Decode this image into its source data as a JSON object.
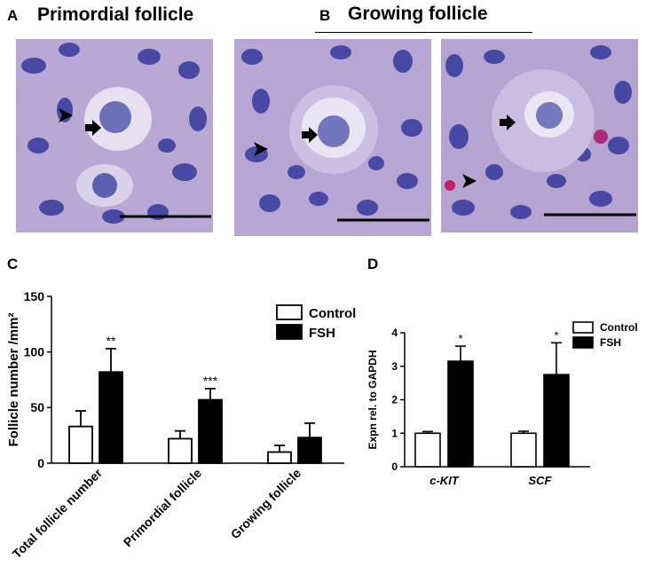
{
  "panels": {
    "a": {
      "letter": "A",
      "title": "Primordial follicle"
    },
    "b": {
      "letter": "B",
      "title": "Growing follicle"
    },
    "c": {
      "letter": "C"
    },
    "d": {
      "letter": "D"
    }
  },
  "colors": {
    "control": "#ffffff",
    "fsh": "#000000",
    "stain_bg": "#b7a5d2",
    "nucleus": "#3a3fa0",
    "oocyte": "#e4def0"
  },
  "chart_data": [
    {
      "id": "C",
      "type": "bar",
      "categories": [
        "Total follicle number",
        "Primordial follicle",
        "Growing follicle"
      ],
      "series": [
        {
          "name": "Control",
          "values": [
            33,
            22,
            10
          ],
          "errors": [
            14,
            7,
            6
          ]
        },
        {
          "name": "FSH",
          "values": [
            82,
            57,
            23
          ],
          "errors": [
            21,
            10,
            13
          ]
        }
      ],
      "significance": [
        "**",
        "***",
        ""
      ],
      "ylabel": "Follicle number /mm²",
      "ylim": [
        0,
        150
      ],
      "yticks": [
        0,
        50,
        100,
        150
      ],
      "legend": "top-right"
    },
    {
      "id": "D",
      "type": "bar",
      "categories": [
        "c-KIT",
        "SCF"
      ],
      "series": [
        {
          "name": "Control",
          "values": [
            1.0,
            1.0
          ],
          "errors": [
            0.05,
            0.06
          ]
        },
        {
          "name": "FSH",
          "values": [
            3.15,
            2.75
          ],
          "errors": [
            0.45,
            0.95
          ]
        }
      ],
      "significance": [
        "*",
        "*"
      ],
      "ylabel": "Expn rel. to GAPDH",
      "ylim": [
        0,
        4
      ],
      "yticks": [
        0,
        1,
        2,
        3,
        4
      ],
      "legend": "top-right"
    }
  ]
}
